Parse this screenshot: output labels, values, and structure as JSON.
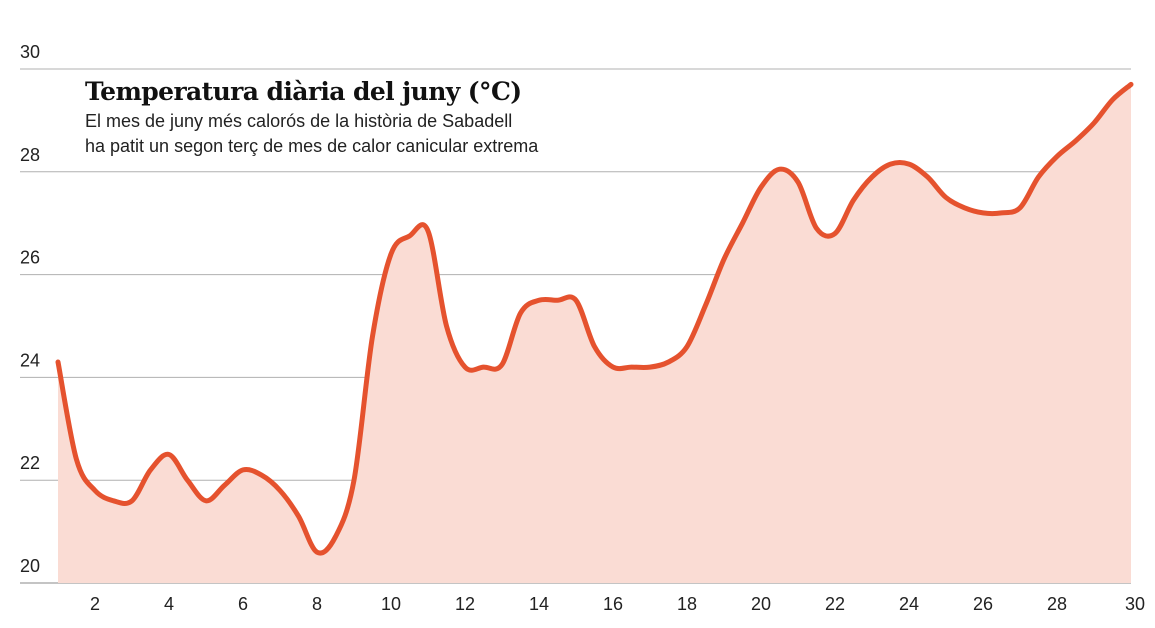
{
  "chart_data": {
    "type": "area",
    "title": "Temperatura diària del juny (°C)",
    "subtitle_lines": [
      "El mes de juny més calorós de la història de Sabadell",
      "ha patit un segon terç de mes de calor canicular extrema"
    ],
    "xlabel": "",
    "ylabel": "",
    "xlim": [
      1,
      30
    ],
    "ylim": [
      20,
      30
    ],
    "x_ticks": [
      "2",
      "4",
      "6",
      "8",
      "10",
      "12",
      "14",
      "16",
      "18",
      "20",
      "22",
      "24",
      "26",
      "28",
      "30"
    ],
    "y_ticks": [
      "20",
      "22",
      "24",
      "26",
      "28",
      "30"
    ],
    "grid": "horizontal",
    "series": [
      {
        "x": [
          1,
          1.5,
          2,
          2.5,
          3,
          3.5,
          4,
          4.5,
          5,
          5.5,
          6,
          6.5,
          7,
          7.5,
          8,
          8.5,
          9,
          9.5,
          10,
          10.5,
          11,
          11.5,
          12,
          12.5,
          13,
          13.5,
          14,
          14.5,
          15,
          15.5,
          16,
          16.5,
          17,
          17.5,
          18,
          18.5,
          19,
          19.5,
          20,
          20.5,
          21,
          21.5,
          22,
          22.5,
          23,
          23.5,
          24,
          24.5,
          25,
          25.5,
          26,
          26.5,
          27,
          27.5,
          28,
          28.5,
          29,
          29.5,
          30
        ],
        "values": [
          24.3,
          22.4,
          21.8,
          21.6,
          21.6,
          22.2,
          22.5,
          22.0,
          21.6,
          21.9,
          22.2,
          22.1,
          21.8,
          21.3,
          20.6,
          20.9,
          22.0,
          24.8,
          26.4,
          26.75,
          26.85,
          25.0,
          24.2,
          24.2,
          24.25,
          25.25,
          25.5,
          25.5,
          25.5,
          24.6,
          24.2,
          24.2,
          24.2,
          24.3,
          24.6,
          25.4,
          26.3,
          27.0,
          27.7,
          28.05,
          27.8,
          26.9,
          26.8,
          27.45,
          27.9,
          28.15,
          28.15,
          27.9,
          27.5,
          27.3,
          27.2,
          27.2,
          27.3,
          27.9,
          28.3,
          28.6,
          28.95,
          29.4,
          29.7
        ]
      }
    ],
    "colors": {
      "line": "#e5522e",
      "fill": "#fadcd4",
      "grid": "#b0b0b0",
      "text": "#222222"
    }
  }
}
